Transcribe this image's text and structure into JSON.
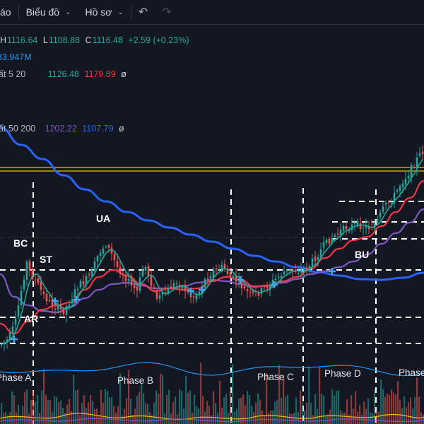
{
  "toolbar": {
    "cut_label": "áo",
    "chart_menu": "Biểu đồ",
    "profile_menu": "Hồ sơ",
    "undo_icon": "undo-icon",
    "redo_icon": "redo-icon"
  },
  "legend": {
    "ohlc": {
      "h_label": "H",
      "h_value": "1116.64",
      "l_label": "L",
      "l_value": "1108.88",
      "c_label": "C",
      "c_value": "1116.48",
      "change": "+2.59 (+0.23%)"
    },
    "volume": "33.947M",
    "ma_short": {
      "label": "ất 5 20",
      "v1": "1126.48",
      "v2": "1179.89",
      "eye": "ø"
    },
    "ma_long": {
      "label": "ất 50 200",
      "v1": "1202.22",
      "v2": "1107.79",
      "eye": "ø"
    }
  },
  "annotations": {
    "phases": [
      "Phase A",
      "Phase B",
      "Phase C",
      "Phase D",
      "Phase"
    ],
    "events": [
      "BC",
      "ST",
      "AR",
      "UA",
      "BU"
    ]
  },
  "colors": {
    "background": "#131722",
    "up": "#26a69a",
    "down": "#ef5350",
    "ma5": "#26a69a",
    "ma20": "#f23645",
    "ma50": "#7e57c2",
    "ma200": "#2962ff",
    "resistance": "#f0b90b",
    "volume_ma": "#2196f3"
  },
  "chart_data": {
    "type": "line",
    "title": "",
    "series": [
      {
        "name": "",
        "values": [
          1044,
          1051,
          1078,
          1090,
          1060,
          1048,
          1050,
          1062,
          1068,
          1082,
          1088,
          1065,
          1058,
          1050,
          1042,
          1060,
          1052,
          1048,
          1056,
          1062,
          1068,
          1058,
          1054,
          1050,
          1055,
          1064,
          1070,
          1075,
          1072,
          1090,
          1102,
          1108,
          1112,
          1120,
          1128,
          1134,
          1140,
          1148,
          1152,
          1160
        ]
      },
      {
        "name": "",
        "values": [
          1180,
          1172,
          1160,
          1148,
          1136,
          1126,
          1118,
          1110,
          1102,
          1095,
          1090,
          1086,
          1082,
          1079,
          1076,
          1072,
          1069,
          1067,
          1065,
          1064,
          1062,
          1060,
          1059,
          1058,
          1057,
          1057,
          1058,
          1060,
          1062,
          1066,
          1070,
          1074,
          1078,
          1083,
          1088,
          1092,
          1096,
          1100,
          1104,
          1108
        ]
      }
    ],
    "grid": false,
    "legend": "top-left"
  }
}
